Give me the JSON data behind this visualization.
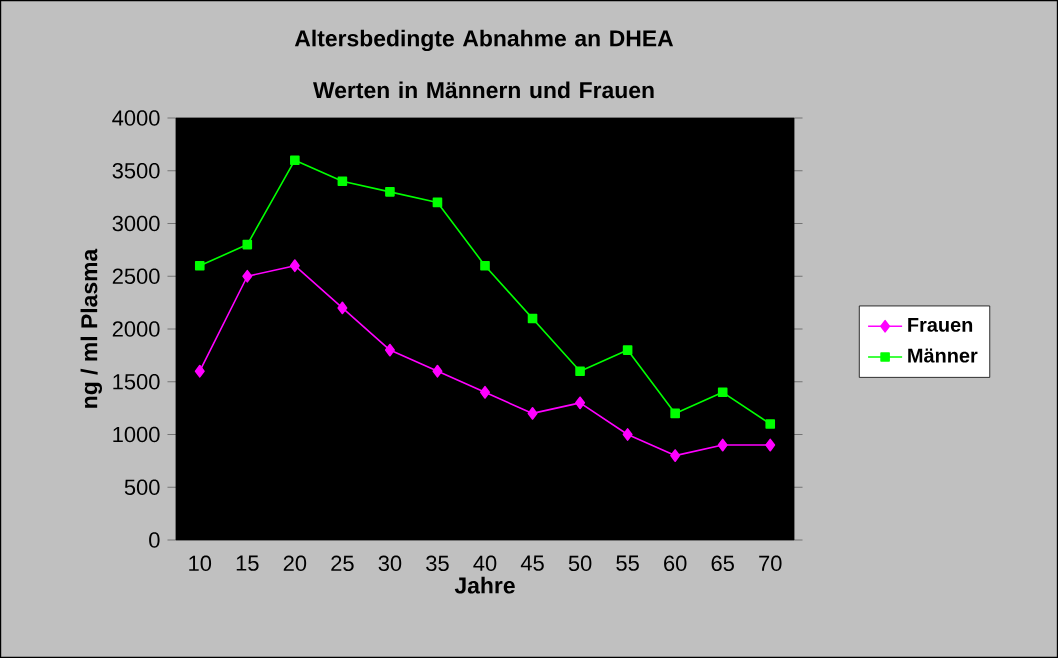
{
  "chart_data": {
    "type": "line",
    "title": "Altersbedingte Abnahme an DHEA Werten in Männern und Frauen",
    "xlabel": "Jahre",
    "ylabel": "ng / ml Plasma",
    "categories": [
      "10",
      "15",
      "20",
      "25",
      "30",
      "35",
      "40",
      "45",
      "50",
      "55",
      "60",
      "65",
      "70"
    ],
    "series": [
      {
        "name": "Frauen",
        "color": "#ff00ff",
        "marker": "diamond",
        "values": [
          1600,
          2500,
          2600,
          2200,
          1800,
          1600,
          1400,
          1200,
          1300,
          1000,
          800,
          900,
          900
        ]
      },
      {
        "name": "Männer",
        "color": "#00ff00",
        "marker": "square",
        "values": [
          2600,
          2800,
          3600,
          3400,
          3300,
          3200,
          2600,
          2100,
          1600,
          1800,
          1200,
          1400,
          1100
        ]
      }
    ],
    "ylim": [
      0,
      4000
    ],
    "yticks": [
      0,
      500,
      1000,
      1500,
      2000,
      2500,
      3000,
      3500,
      4000
    ],
    "grid": false,
    "legend": "right"
  }
}
